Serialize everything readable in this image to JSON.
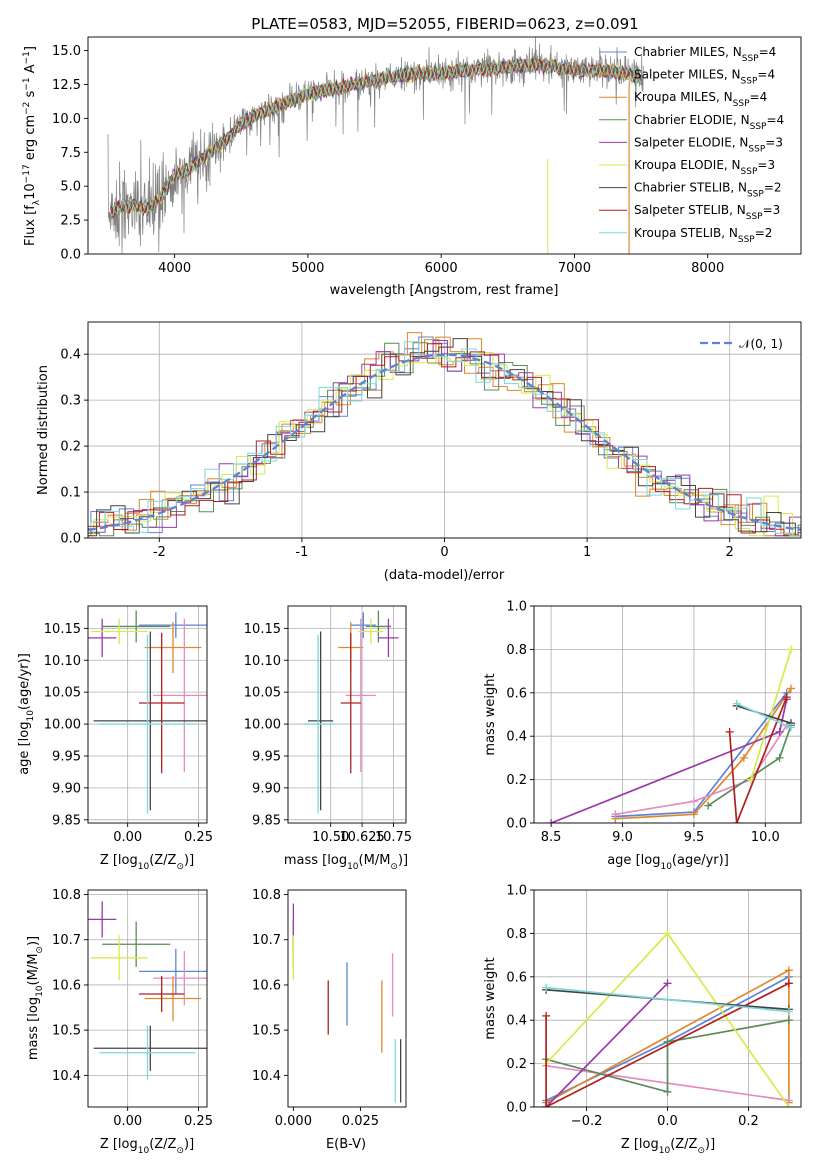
{
  "title": "PLATE=0583, MJD=52055, FIBERID=0623, z=0.091",
  "models": [
    {
      "label": "Chabrier MILES, N",
      "sub": "SSP",
      "tail": "=4",
      "color": "#5b84d9"
    },
    {
      "label": "Salpeter MILES, N",
      "sub": "SSP",
      "tail": "=4",
      "color": "#e0872c"
    },
    {
      "label": "Kroupa MILES, N",
      "sub": "SSP",
      "tail": "=4",
      "color": "#d18c32"
    },
    {
      "label": "Chabrier ELODIE, N",
      "sub": "SSP",
      "tail": "=4",
      "color": "#5c8a5a"
    },
    {
      "label": "Salpeter ELODIE, N",
      "sub": "SSP",
      "tail": "=3",
      "color": "#9b3aaa"
    },
    {
      "label": "Kroupa ELODIE, N",
      "sub": "SSP",
      "tail": "=3",
      "color": "#d8ea4a"
    },
    {
      "label": "Chabrier STELIB, N",
      "sub": "SSP",
      "tail": "=2",
      "color": "#444444"
    },
    {
      "label": "Salpeter STELIB, N",
      "sub": "SSP",
      "tail": "=3",
      "color": "#b0201e"
    },
    {
      "label": "Kroupa STELIB, N",
      "sub": "SSP",
      "tail": "=2",
      "color": "#7ed8d8"
    }
  ],
  "chart_data": [
    {
      "id": "spectrum",
      "type": "line",
      "xlabel": "wavelength [Angstrom, rest frame]",
      "ylabel": "Flux [f",
      "ylabel_sub": "λ",
      "ylabel_rest": "10",
      "ylabel_exp": "−17",
      "ylabel_tail1": " erg cm",
      "ylabel_exp2": "−2",
      "ylabel_tail2": " s",
      "ylabel_exp3": "−1",
      "ylabel_tail3": " A",
      "ylabel_exp4": "−1",
      "ylabel_end": "]",
      "xlim": [
        3350,
        8700
      ],
      "ylim": [
        0,
        16
      ],
      "xticks": [
        4000,
        5000,
        6000,
        7000,
        8000
      ],
      "yticks": [
        0.0,
        2.5,
        5.0,
        7.5,
        10.0,
        12.5,
        15.0
      ],
      "grid": false,
      "legend": "top-right",
      "data_color": "#808080",
      "continuum": {
        "x": [
          3500,
          3600,
          3700,
          3800,
          3900,
          4000,
          4100,
          4200,
          4300,
          4400,
          4500,
          4600,
          4800,
          5000,
          5200,
          5400,
          5600,
          5800,
          6000,
          6200,
          6400,
          6600,
          6800,
          7000,
          7200,
          7400,
          7500
        ],
        "y": [
          3.0,
          3.5,
          3.6,
          3.3,
          4.2,
          5.8,
          6.2,
          7.0,
          7.8,
          8.5,
          9.6,
          10.2,
          11.0,
          11.8,
          12.2,
          12.6,
          13.0,
          13.3,
          13.3,
          13.5,
          13.7,
          13.9,
          13.9,
          13.5,
          13.6,
          13.3,
          13.0
        ]
      }
    },
    {
      "id": "residuals",
      "type": "step",
      "xlabel": "(data-model)/error",
      "ylabel": "Normed distribution",
      "xlim": [
        -2.5,
        2.5
      ],
      "ylim": [
        0,
        0.47
      ],
      "xticks": [
        -2,
        -1,
        0,
        1,
        2
      ],
      "yticks": [
        0.0,
        0.1,
        0.2,
        0.3,
        0.4
      ],
      "grid": true,
      "legend": "top-right",
      "reference": {
        "label": "𝒩(0, 1)",
        "mu": 0,
        "sigma": 1,
        "color": "#5b84d9"
      }
    },
    {
      "id": "age-vs-Z",
      "type": "errorbar",
      "xlabel": "Z [log",
      "xlabel_sub": "10",
      "xlabel_tail": "(Z/Z",
      "xlabel_sub2": "⊙",
      "xlabel_end": ")]",
      "ylabel": "age  [log",
      "ylabel_sub": "10",
      "ylabel_tail": "(age/yr)]",
      "xlim": [
        -0.14,
        0.28
      ],
      "ylim": [
        9.845,
        10.185
      ],
      "xticks": [
        0.0,
        0.25
      ],
      "xticklabels": [
        "0.00",
        "0.25"
      ],
      "yticks": [
        9.85,
        9.9,
        9.95,
        10.0,
        10.05,
        10.1,
        10.15
      ],
      "grid": true,
      "points": [
        {
          "x": 0.17,
          "xerr": 0.13,
          "y": 10.155,
          "yerr": 0.02,
          "color": "#5b84d9"
        },
        {
          "x": 0.16,
          "xerr": 0.1,
          "y": 10.12,
          "yerr": 0.04,
          "color": "#e0872c"
        },
        {
          "x": 0.2,
          "xerr": 0.11,
          "y": 10.045,
          "yerr": 0.12,
          "color": "#e68ac0"
        },
        {
          "x": 0.03,
          "xerr": 0.12,
          "y": 10.153,
          "yerr": 0.025,
          "color": "#5c8a5a"
        },
        {
          "x": -0.09,
          "xerr": 0.05,
          "y": 10.135,
          "yerr": 0.03,
          "color": "#9b3aaa"
        },
        {
          "x": -0.03,
          "xerr": 0.1,
          "y": 10.145,
          "yerr": 0.02,
          "color": "#d8ea4a"
        },
        {
          "x": 0.08,
          "xerr": 0.2,
          "y": 10.005,
          "yerr": 0.14,
          "color": "#444444"
        },
        {
          "x": 0.12,
          "xerr": 0.08,
          "y": 10.033,
          "yerr": 0.11,
          "color": "#b0201e"
        },
        {
          "x": 0.07,
          "xerr": 0.17,
          "y": 10.0,
          "yerr": 0.14,
          "color": "#7ed8d8"
        }
      ]
    },
    {
      "id": "age-vs-mass",
      "type": "errorbar",
      "xlabel": "mass [log",
      "xlabel_sub": "10",
      "xlabel_tail": "(M/M",
      "xlabel_sub2": "⊙",
      "xlabel_end": ")]",
      "xlim": [
        10.33,
        10.8
      ],
      "ylim": [
        9.845,
        10.185
      ],
      "xticks": [
        10.5,
        10.625,
        10.75
      ],
      "xticklabels": [
        "10.50",
        "10.625",
        "10.75"
      ],
      "yticks": [
        9.85,
        9.9,
        9.95,
        10.0,
        10.05,
        10.1,
        10.15
      ],
      "grid": true,
      "points": [
        {
          "x": 10.63,
          "xerr": 0.05,
          "y": 10.155,
          "yerr": 0.02,
          "color": "#5b84d9"
        },
        {
          "x": 10.58,
          "xerr": 0.05,
          "y": 10.12,
          "yerr": 0.04,
          "color": "#e0872c"
        },
        {
          "x": 10.62,
          "xerr": 0.06,
          "y": 10.045,
          "yerr": 0.12,
          "color": "#e68ac0"
        },
        {
          "x": 10.69,
          "xerr": 0.05,
          "y": 10.153,
          "yerr": 0.025,
          "color": "#5c8a5a"
        },
        {
          "x": 10.73,
          "xerr": 0.04,
          "y": 10.135,
          "yerr": 0.03,
          "color": "#9b3aaa"
        },
        {
          "x": 10.66,
          "xerr": 0.05,
          "y": 10.145,
          "yerr": 0.02,
          "color": "#d8ea4a"
        },
        {
          "x": 10.46,
          "xerr": 0.05,
          "y": 10.005,
          "yerr": 0.14,
          "color": "#444444"
        },
        {
          "x": 10.58,
          "xerr": 0.04,
          "y": 10.033,
          "yerr": 0.11,
          "color": "#b0201e"
        },
        {
          "x": 10.45,
          "xerr": 0.06,
          "y": 10.0,
          "yerr": 0.14,
          "color": "#7ed8d8"
        }
      ]
    },
    {
      "id": "weight-vs-age",
      "type": "line",
      "xlabel": "age  [log",
      "xlabel_sub": "10",
      "xlabel_tail": "(age/yr)]",
      "ylabel": "mass weight",
      "xlim": [
        8.38,
        10.25
      ],
      "ylim": [
        0,
        1
      ],
      "xticks": [
        8.5,
        9.0,
        9.5,
        10.0
      ],
      "xticklabels": [
        "8.5",
        "9.0",
        "9.5",
        "10.0"
      ],
      "yticks": [
        0.0,
        0.2,
        0.4,
        0.6,
        0.8,
        1.0
      ],
      "grid": true,
      "series": [
        {
          "color": "#5b84d9",
          "x": [
            8.95,
            9.5,
            10.15
          ],
          "y": [
            0.03,
            0.05,
            0.6
          ]
        },
        {
          "color": "#e0872c",
          "x": [
            8.95,
            9.5,
            9.85,
            10.18
          ],
          "y": [
            0.02,
            0.04,
            0.3,
            0.62
          ]
        },
        {
          "color": "#e68ac0",
          "x": [
            8.95,
            9.5,
            9.9,
            10.15
          ],
          "y": [
            0.04,
            0.1,
            0.2,
            0.45
          ]
        },
        {
          "color": "#5c8a5a",
          "x": [
            9.6,
            10.1,
            10.18
          ],
          "y": [
            0.08,
            0.3,
            0.45
          ]
        },
        {
          "color": "#9b3aaa",
          "x": [
            8.5,
            10.1,
            10.15
          ],
          "y": [
            0.0,
            0.42,
            0.57
          ]
        },
        {
          "color": "#d8ea4a",
          "x": [
            9.9,
            10.18
          ],
          "y": [
            0.2,
            0.8
          ]
        },
        {
          "color": "#444444",
          "x": [
            9.8,
            10.18
          ],
          "y": [
            0.54,
            0.46
          ]
        },
        {
          "color": "#b0201e",
          "x": [
            9.75,
            9.8,
            10.15
          ],
          "y": [
            0.42,
            0.0,
            0.58
          ]
        },
        {
          "color": "#7ed8d8",
          "x": [
            9.8,
            10.18
          ],
          "y": [
            0.55,
            0.44
          ]
        }
      ]
    },
    {
      "id": "mass-vs-Z",
      "type": "errorbar",
      "xlabel": "Z [log",
      "xlabel_sub": "10",
      "xlabel_tail": "(Z/Z",
      "xlabel_sub2": "⊙",
      "xlabel_end": ")]",
      "ylabel": "mass [log",
      "ylabel_sub": "10",
      "ylabel_tail": "(M/M",
      "ylabel_sub2": "⊙",
      "ylabel_end": ")]",
      "xlim": [
        -0.14,
        0.28
      ],
      "ylim": [
        10.33,
        10.81
      ],
      "xticks": [
        0.0,
        0.25
      ],
      "xticklabels": [
        "0.00",
        "0.25"
      ],
      "yticks": [
        10.4,
        10.5,
        10.6,
        10.7,
        10.8
      ],
      "grid": true,
      "points": [
        {
          "x": 0.17,
          "xerr": 0.13,
          "y": 10.63,
          "yerr": 0.05,
          "color": "#5b84d9"
        },
        {
          "x": 0.16,
          "xerr": 0.1,
          "y": 10.57,
          "yerr": 0.05,
          "color": "#e0872c"
        },
        {
          "x": 0.2,
          "xerr": 0.11,
          "y": 10.615,
          "yerr": 0.06,
          "color": "#e68ac0"
        },
        {
          "x": 0.03,
          "xerr": 0.12,
          "y": 10.69,
          "yerr": 0.05,
          "color": "#5c8a5a"
        },
        {
          "x": -0.09,
          "xerr": 0.05,
          "y": 10.745,
          "yerr": 0.04,
          "color": "#9b3aaa"
        },
        {
          "x": -0.03,
          "xerr": 0.1,
          "y": 10.66,
          "yerr": 0.05,
          "color": "#d8ea4a"
        },
        {
          "x": 0.08,
          "xerr": 0.2,
          "y": 10.46,
          "yerr": 0.05,
          "color": "#444444"
        },
        {
          "x": 0.12,
          "xerr": 0.08,
          "y": 10.58,
          "yerr": 0.04,
          "color": "#b0201e"
        },
        {
          "x": 0.07,
          "xerr": 0.17,
          "y": 10.45,
          "yerr": 0.06,
          "color": "#7ed8d8"
        }
      ]
    },
    {
      "id": "mass-vs-ebv",
      "type": "errorbar",
      "xlabel": "E(B-V)",
      "xlim": [
        -0.002,
        0.042
      ],
      "ylim": [
        10.33,
        10.81
      ],
      "xticks": [
        0.0,
        0.025
      ],
      "xticklabels": [
        "0.000",
        "0.025"
      ],
      "yticks": [
        10.4,
        10.5,
        10.6,
        10.7,
        10.8
      ],
      "grid": false,
      "points": [
        {
          "x": 0.02,
          "xerr": 0,
          "y": 10.58,
          "yerr": 0.07,
          "color": "#5b84d9"
        },
        {
          "x": 0.033,
          "xerr": 0,
          "y": 10.53,
          "yerr": 0.08,
          "color": "#e0872c"
        },
        {
          "x": 0.037,
          "xerr": 0,
          "y": 10.6,
          "yerr": 0.07,
          "color": "#e68ac0"
        },
        {
          "x": 0.0,
          "xerr": 0,
          "y": 10.69,
          "yerr": 0.05,
          "color": "#5c8a5a"
        },
        {
          "x": 0.0,
          "xerr": 0,
          "y": 10.73,
          "yerr": 0.05,
          "color": "#9b3aaa"
        },
        {
          "x": 0.0,
          "xerr": 0,
          "y": 10.66,
          "yerr": 0.05,
          "color": "#d8ea4a"
        },
        {
          "x": 0.04,
          "xerr": 0,
          "y": 10.41,
          "yerr": 0.07,
          "color": "#444444"
        },
        {
          "x": 0.013,
          "xerr": 0,
          "y": 10.55,
          "yerr": 0.06,
          "color": "#b0201e"
        },
        {
          "x": 0.038,
          "xerr": 0,
          "y": 10.41,
          "yerr": 0.07,
          "color": "#7ed8d8"
        }
      ]
    },
    {
      "id": "weight-vs-Z",
      "type": "line",
      "xlabel": "Z [log",
      "xlabel_sub": "10",
      "xlabel_tail": "(Z/Z",
      "xlabel_sub2": "⊙",
      "xlabel_end": ")]",
      "ylabel": "mass weight",
      "xlim": [
        -0.33,
        0.33
      ],
      "ylim": [
        0,
        1
      ],
      "xticks": [
        -0.2,
        0.0,
        0.2
      ],
      "xticklabels": [
        "−0.2",
        "0.0",
        "0.2"
      ],
      "yticks": [
        0.0,
        0.2,
        0.4,
        0.6,
        0.8,
        1.0
      ],
      "grid": true,
      "series": [
        {
          "color": "#5b84d9",
          "x": [
            -0.3,
            0.0,
            0.3
          ],
          "y": [
            0.03,
            0.3,
            0.6
          ]
        },
        {
          "color": "#e0872c",
          "x": [
            -0.3,
            0.3,
            0.3
          ],
          "y": [
            0.02,
            0.63,
            0.02
          ]
        },
        {
          "color": "#e68ac0",
          "x": [
            -0.3,
            0.3
          ],
          "y": [
            0.19,
            0.03
          ]
        },
        {
          "color": "#5c8a5a",
          "x": [
            -0.3,
            0.0,
            0.0,
            0.3
          ],
          "y": [
            0.22,
            0.07,
            0.3,
            0.4
          ]
        },
        {
          "color": "#9b3aaa",
          "x": [
            -0.3,
            0.0
          ],
          "y": [
            0.0,
            0.57
          ]
        },
        {
          "color": "#d8ea4a",
          "x": [
            -0.3,
            0.0,
            0.3
          ],
          "y": [
            0.2,
            0.8,
            0.0
          ]
        },
        {
          "color": "#444444",
          "x": [
            -0.3,
            0.3
          ],
          "y": [
            0.54,
            0.45
          ]
        },
        {
          "color": "#b0201e",
          "x": [
            -0.3,
            -0.3,
            0.3
          ],
          "y": [
            0.42,
            0.0,
            0.57
          ]
        },
        {
          "color": "#7ed8d8",
          "x": [
            -0.3,
            0.3
          ],
          "y": [
            0.55,
            0.44
          ]
        }
      ]
    }
  ]
}
